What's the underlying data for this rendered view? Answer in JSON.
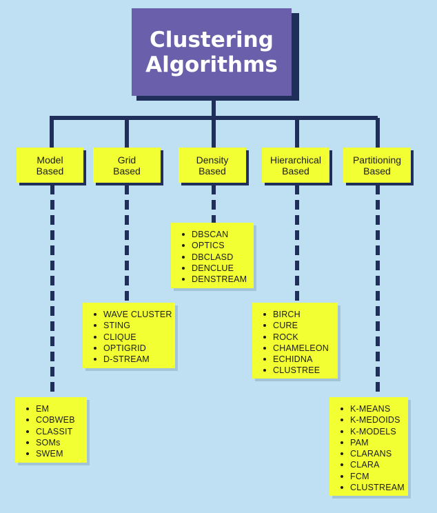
{
  "title": {
    "line1": "Clustering",
    "line2": "Algorithms"
  },
  "colors": {
    "background": "#bfe0f3",
    "title_box": "#6a5fab",
    "title_shadow": "#1f2f5a",
    "connector": "#1f2f5a",
    "box_fill": "#f2ff32"
  },
  "categories": [
    {
      "line1": "Model",
      "line2": "Based",
      "items": [
        "EM",
        "COBWEB",
        "CLASSIT",
        "SOMs",
        "SWEM"
      ]
    },
    {
      "line1": "Grid",
      "line2": "Based",
      "items": [
        "WAVE CLUSTER",
        "STING",
        "CLIQUE",
        "OPTIGRID",
        "D-STREAM"
      ]
    },
    {
      "line1": "Density",
      "line2": "Based",
      "items": [
        "DBSCAN",
        "OPTICS",
        "DBCLASD",
        "DENCLUE",
        "DENSTREAM"
      ]
    },
    {
      "line1": "Hierarchical",
      "line2": "Based",
      "items": [
        "BIRCH",
        "CURE",
        "ROCK",
        "CHAMELEON",
        "ECHIDNA",
        "CLUSTREE"
      ]
    },
    {
      "line1": "Partitioning",
      "line2": "Based",
      "items": [
        "K-MEANS",
        "K-MEDOIDS",
        "K-MODELS",
        "PAM",
        "CLARANS",
        "CLARA",
        "FCM",
        "CLUSTREAM"
      ]
    }
  ]
}
